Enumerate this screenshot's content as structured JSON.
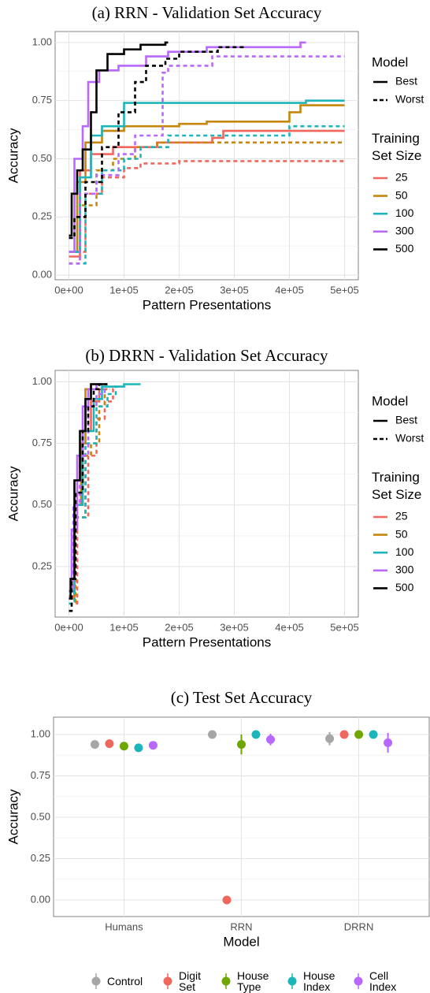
{
  "chart_data": [
    {
      "type": "step",
      "title": "(a) RRN - Validation Set Accuracy",
      "x_label": "Pattern Presentations",
      "y_label": "Accuracy",
      "xlim": [
        -25000,
        525000
      ],
      "ylim": [
        -0.02,
        1.047
      ],
      "xticks": [
        {
          "value": 0,
          "label": "0e+00"
        },
        {
          "value": 100000,
          "label": "1e+05"
        },
        {
          "value": 200000,
          "label": "2e+05"
        },
        {
          "value": 300000,
          "label": "3e+05"
        },
        {
          "value": 400000,
          "label": "4e+05"
        },
        {
          "value": 500000,
          "label": "5e+05"
        }
      ],
      "yticks": [
        {
          "value": 0,
          "label": "0.00"
        },
        0.25,
        {
          "value": 0.5,
          "label": "0.50"
        },
        0.75,
        {
          "value": 1,
          "label": "1.00"
        }
      ],
      "grid": true,
      "legend": {
        "line_title": "Model",
        "lines": [
          {
            "name": "Best",
            "dash": "solid"
          },
          {
            "name": "Worst",
            "dash": "dashed"
          }
        ],
        "color_title": "Training Set Size"
      },
      "series": [
        {
          "name": "25",
          "color": "#F0675E",
          "lines": [
            {
              "x": [
                0,
                20000,
                40000,
                80000,
                160000,
                260000,
                280000,
                500000
              ],
              "values": [
                0.08,
                0.45,
                0.52,
                0.55,
                0.57,
                0.59,
                0.62,
                0.62
              ]
            },
            {
              "x": [
                0,
                30000,
                60000,
                100000,
                130000,
                200000,
                500000
              ],
              "values": [
                0.1,
                0.35,
                0.42,
                0.46,
                0.48,
                0.49,
                0.49
              ]
            }
          ]
        },
        {
          "name": "50",
          "color": "#C6860E",
          "lines": [
            {
              "x": [
                0,
                15000,
                30000,
                60000,
                100000,
                200000,
                250000,
                400000,
                420000,
                500000
              ],
              "values": [
                0.1,
                0.4,
                0.57,
                0.62,
                0.64,
                0.65,
                0.66,
                0.7,
                0.73,
                0.73
              ]
            },
            {
              "x": [
                0,
                20000,
                50000,
                80000,
                120000,
                160000,
                500000
              ],
              "values": [
                0.05,
                0.3,
                0.45,
                0.5,
                0.55,
                0.57,
                0.57
              ]
            }
          ]
        },
        {
          "name": "100",
          "color": "#1DB5BC",
          "lines": [
            {
              "x": [
                0,
                20000,
                40000,
                60000,
                100000,
                430000,
                500000
              ],
              "values": [
                0.1,
                0.42,
                0.6,
                0.64,
                0.74,
                0.75,
                0.75
              ]
            },
            {
              "x": [
                0,
                30000,
                60000,
                100000,
                130000,
                180000,
                400000,
                500000
              ],
              "values": [
                0.05,
                0.35,
                0.45,
                0.5,
                0.55,
                0.6,
                0.64,
                0.64
              ]
            }
          ]
        },
        {
          "name": "300",
          "color": "#B968FF",
          "lines": [
            {
              "x": [
                0,
                10000,
                25000,
                35000,
                55000,
                90000,
                140000,
                180000,
                250000,
                420000,
                430000
              ],
              "values": [
                0.1,
                0.5,
                0.64,
                0.83,
                0.88,
                0.9,
                0.94,
                0.96,
                0.98,
                1.0,
                1.0
              ]
            },
            {
              "x": [
                0,
                20000,
                50000,
                90000,
                120000,
                170000,
                180000,
                260000,
                500000
              ],
              "values": [
                0.05,
                0.35,
                0.43,
                0.52,
                0.6,
                0.87,
                0.9,
                0.94,
                0.94
              ]
            }
          ]
        },
        {
          "name": "500",
          "color": "#000000",
          "lines": [
            {
              "x": [
                0,
                5000,
                15000,
                25000,
                40000,
                50000,
                70000,
                100000,
                130000,
                175000,
                180000
              ],
              "values": [
                0.17,
                0.35,
                0.45,
                0.54,
                0.7,
                0.88,
                0.95,
                0.97,
                0.99,
                1.0,
                1.0
              ]
            },
            {
              "x": [
                0,
                10000,
                30000,
                60000,
                90000,
                120000,
                140000,
                175000,
                200000,
                270000,
                320000
              ],
              "values": [
                0.16,
                0.25,
                0.4,
                0.55,
                0.7,
                0.83,
                0.9,
                0.93,
                0.96,
                0.98,
                0.98
              ]
            }
          ]
        }
      ]
    },
    {
      "type": "step",
      "title": "(b) DRRN - Validation Set Accuracy",
      "x_label": "Pattern Presentations",
      "y_label": "Accuracy",
      "xlim": [
        -25000,
        525000
      ],
      "ylim": [
        0.045,
        1.046
      ],
      "xticks": [
        {
          "value": 0,
          "label": "0e+00"
        },
        {
          "value": 100000,
          "label": "1e+05"
        },
        {
          "value": 200000,
          "label": "2e+05"
        },
        {
          "value": 300000,
          "label": "3e+05"
        },
        {
          "value": 400000,
          "label": "4e+05"
        },
        {
          "value": 500000,
          "label": "5e+05"
        }
      ],
      "yticks": [
        0.25,
        {
          "value": 0.5,
          "label": "0.50"
        },
        0.75,
        {
          "value": 1,
          "label": "1.00"
        }
      ],
      "grid": true,
      "legend": {
        "line_title": "Model",
        "lines": [
          {
            "name": "Best",
            "dash": "solid"
          },
          {
            "name": "Worst",
            "dash": "dashed"
          }
        ],
        "color_title": "Training Set Size"
      },
      "series": [
        {
          "name": "25",
          "color": "#F0675E",
          "lines": [
            {
              "x": [
                0,
                10000,
                25000,
                40000,
                55000,
                70000
              ],
              "values": [
                0.13,
                0.5,
                0.8,
                0.92,
                0.97,
                0.97
              ]
            },
            {
              "x": [
                0,
                15000,
                35000,
                50000,
                65000,
                80000,
                85000
              ],
              "values": [
                0.1,
                0.45,
                0.7,
                0.85,
                0.92,
                0.97,
                0.97
              ]
            }
          ]
        },
        {
          "name": "50",
          "color": "#C6860E",
          "lines": [
            {
              "x": [
                0,
                10000,
                22000,
                30000,
                40000,
                50000
              ],
              "values": [
                0.12,
                0.5,
                0.75,
                0.97,
                0.99,
                0.99
              ]
            },
            {
              "x": [
                0,
                12000,
                30000,
                40000,
                55000,
                65000,
                75000
              ],
              "values": [
                0.1,
                0.45,
                0.7,
                0.75,
                0.9,
                0.97,
                0.97
              ]
            }
          ]
        },
        {
          "name": "100",
          "color": "#1DB5BC",
          "lines": [
            {
              "x": [
                0,
                10000,
                25000,
                45000,
                60000,
                100000,
                130000
              ],
              "values": [
                0.15,
                0.5,
                0.8,
                0.93,
                0.98,
                0.99,
                0.99
              ]
            },
            {
              "x": [
                0,
                10000,
                30000,
                50000,
                70000,
                85000,
                90000
              ],
              "values": [
                0.1,
                0.45,
                0.75,
                0.9,
                0.95,
                0.98,
                0.98
              ]
            }
          ]
        },
        {
          "name": "300",
          "color": "#B968FF",
          "lines": [
            {
              "x": [
                0,
                5000,
                15000,
                25000,
                35000,
                50000,
                60000
              ],
              "values": [
                0.15,
                0.4,
                0.7,
                0.9,
                0.97,
                0.99,
                0.99
              ]
            },
            {
              "x": [
                0,
                8000,
                20000,
                35000,
                50000,
                65000,
                70000
              ],
              "values": [
                0.15,
                0.5,
                0.7,
                0.9,
                0.95,
                0.97,
                0.97
              ]
            }
          ]
        },
        {
          "name": "500",
          "color": "#000000",
          "lines": [
            {
              "x": [
                0,
                3000,
                10000,
                20000,
                30000,
                40000,
                70000
              ],
              "values": [
                0.12,
                0.2,
                0.6,
                0.8,
                0.93,
                0.99,
                0.99
              ]
            },
            {
              "x": [
                0,
                5000,
                12000,
                25000,
                35000,
                45000,
                55000,
                70000
              ],
              "values": [
                0.07,
                0.2,
                0.55,
                0.8,
                0.9,
                0.97,
                0.99,
                0.99
              ]
            }
          ]
        }
      ]
    },
    {
      "type": "dot",
      "title": "(c) Test Set Accuracy",
      "x_label": "Model",
      "y_label": "Accuracy",
      "categories": [
        "Humans",
        "RRN",
        "DRRN"
      ],
      "ylim": [
        -0.1,
        1.105
      ],
      "yticks": [
        {
          "value": 0,
          "label": "0.00"
        },
        0.25,
        {
          "value": 0.5,
          "label": "0.50"
        },
        0.75,
        {
          "value": 1,
          "label": "1.00"
        }
      ],
      "grid": true,
      "legend": "bottom",
      "series": [
        {
          "name": "Control",
          "color": "#A6A6A6",
          "values": [
            0.94,
            1.0,
            0.975
          ],
          "errors": [
            0.015,
            0.005,
            0.04
          ]
        },
        {
          "name": "Digit Set",
          "color": "#F0675E",
          "values": [
            0.945,
            0.0,
            1.0
          ],
          "errors": [
            0.015,
            0.005,
            0.005
          ]
        },
        {
          "name": "House Type",
          "color": "#6FA600",
          "values": [
            0.93,
            0.94,
            1.0
          ],
          "errors": [
            0.015,
            0.06,
            0.005
          ]
        },
        {
          "name": "House Index",
          "color": "#1DB5BC",
          "values": [
            0.92,
            1.0,
            1.0
          ],
          "errors": [
            0.02,
            0.005,
            0.005
          ]
        },
        {
          "name": "Cell Index",
          "color": "#B968FF",
          "values": [
            0.935,
            0.97,
            0.95
          ],
          "errors": [
            0.015,
            0.035,
            0.06
          ]
        }
      ]
    }
  ]
}
